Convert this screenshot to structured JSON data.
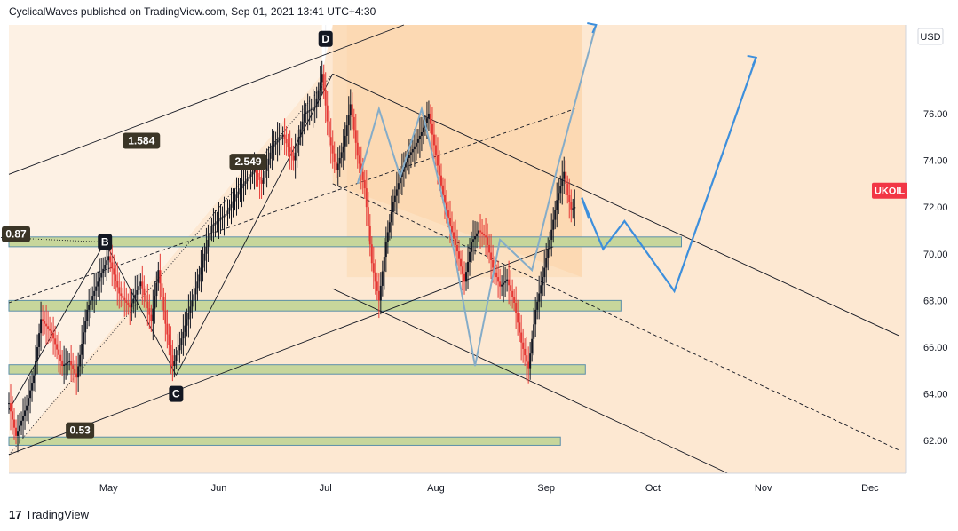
{
  "header": {
    "published": "CyclicalWaves published on TradingView.com, Sep 01, 2021 13:41 UTC+4:30"
  },
  "footer": {
    "logo_mark": "17",
    "brand": "TradingView"
  },
  "chart_data": {
    "type": "candlestick",
    "symbol": "UKOIL",
    "currency": "USD",
    "ylim": [
      60.6,
      79.8
    ],
    "y_ticks": [
      "76.00",
      "74.00",
      "72.00",
      "70.00",
      "68.00",
      "66.00",
      "64.00",
      "62.00"
    ],
    "y_tick_values": [
      76,
      74,
      72,
      70,
      68,
      66,
      64,
      62
    ],
    "x_ticks": [
      "May",
      "Jun",
      "Jul",
      "Aug",
      "Sep",
      "Oct",
      "Nov",
      "Dec"
    ],
    "x_tick_days": [
      31,
      62,
      92,
      123,
      154,
      184,
      215,
      245
    ],
    "x_range_days": [
      3,
      255
    ],
    "last_price_label": "UKOIL",
    "last_price": 72.0,
    "price_anchors": [
      [
        3,
        63.6
      ],
      [
        5,
        62.2
      ],
      [
        8,
        63.5
      ],
      [
        10,
        64.8
      ],
      [
        12,
        67.2
      ],
      [
        15,
        66.6
      ],
      [
        18,
        65.2
      ],
      [
        20,
        65.4
      ],
      [
        22,
        64.7
      ],
      [
        25,
        67.6
      ],
      [
        28,
        68.8
      ],
      [
        31,
        69.9
      ],
      [
        34,
        68.3
      ],
      [
        37,
        67.7
      ],
      [
        40,
        68.8
      ],
      [
        43,
        67.1
      ],
      [
        45,
        69.3
      ],
      [
        47,
        67.0
      ],
      [
        49,
        65.2
      ],
      [
        51,
        66.1
      ],
      [
        53,
        67.2
      ],
      [
        56,
        68.8
      ],
      [
        60,
        71.2
      ],
      [
        64,
        71.7
      ],
      [
        68,
        72.8
      ],
      [
        72,
        73.6
      ],
      [
        74,
        73.0
      ],
      [
        77,
        74.6
      ],
      [
        80,
        75.1
      ],
      [
        83,
        74.0
      ],
      [
        86,
        76.0
      ],
      [
        89,
        76.3
      ],
      [
        91,
        77.7
      ],
      [
        93,
        75.0
      ],
      [
        95,
        73.6
      ],
      [
        97,
        74.6
      ],
      [
        99,
        76.4
      ],
      [
        101,
        74.2
      ],
      [
        103,
        72.8
      ],
      [
        105,
        69.6
      ],
      [
        107,
        68.0
      ],
      [
        109,
        70.5
      ],
      [
        111,
        72.2
      ],
      [
        113,
        73.3
      ],
      [
        115,
        74.1
      ],
      [
        117,
        74.6
      ],
      [
        119,
        75.2
      ],
      [
        121,
        76.0
      ],
      [
        123,
        74.2
      ],
      [
        125,
        72.5
      ],
      [
        127,
        71.2
      ],
      [
        129,
        70.1
      ],
      [
        131,
        68.8
      ],
      [
        133,
        70.5
      ],
      [
        135,
        71.0
      ],
      [
        137,
        70.7
      ],
      [
        139,
        69.4
      ],
      [
        141,
        68.6
      ],
      [
        143,
        68.9
      ],
      [
        145,
        67.9
      ],
      [
        147,
        66.2
      ],
      [
        149,
        65.1
      ],
      [
        151,
        67.6
      ],
      [
        153,
        69.0
      ],
      [
        155,
        70.6
      ],
      [
        157,
        72.3
      ],
      [
        159,
        73.5
      ],
      [
        160,
        72.5
      ],
      [
        161,
        71.9
      ],
      [
        162,
        72.0
      ]
    ],
    "annotations": {
      "fib_labels": [
        "1.584",
        "2.549",
        "0.87",
        "0.53"
      ],
      "point_labels": [
        "B",
        "C",
        "D"
      ]
    }
  },
  "colors": {
    "grid": "#eef0f3",
    "up_candle": "#131722",
    "down_candle": "#e53935",
    "zone_fill": "#c7d69b",
    "zone_stroke": "#5b8fa8",
    "forecast": "#3d8fdc",
    "forecast_faded": "#85acc8",
    "shade_light": "#fde8d2",
    "shade_dark": "#fbd8b0",
    "price_badge": "#f23645"
  }
}
